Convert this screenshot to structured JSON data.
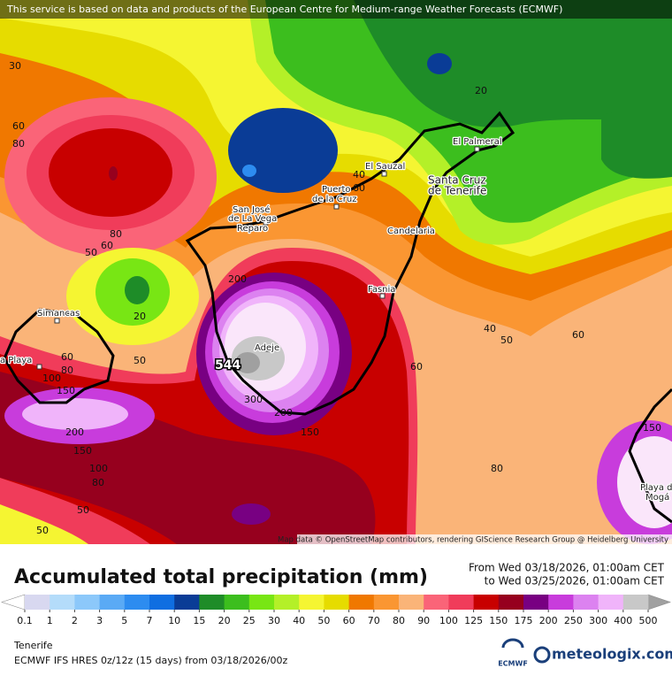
{
  "header": {
    "notice": "This service is based on data and products of the European Centre for Medium-range Weather Forecasts (ECMWF)"
  },
  "map": {
    "places": [
      "El Palmeral",
      "El Sauzal",
      "Santa Cruz",
      "de Tenerife",
      "Puerto",
      "de la Cruz",
      "San José",
      "de La Vega",
      "Reparo",
      "Candelaria",
      "Fasnia",
      "Simancas",
      "Adeje",
      "a Playa",
      "Playa de",
      "Mogá"
    ],
    "contour_labels": [
      30,
      20,
      60,
      80,
      80,
      60,
      50,
      40,
      60,
      200,
      20,
      60,
      80,
      50,
      100,
      150,
      544,
      300,
      200,
      150,
      200,
      150,
      100,
      80,
      50,
      50,
      40,
      50,
      60,
      60,
      80,
      150
    ],
    "attribution": "Map data © OpenStreetMap contributors, rendering GIScience Research Group @ Heidelberg University"
  },
  "footer": {
    "title": "Accumulated total precipitation (mm)",
    "period_from": "From Wed 03/18/2026, 01:00am CET",
    "period_to": "to Wed 03/25/2026, 01:00am CET",
    "region": "Tenerife",
    "model": "ECMWF IFS HRES 0z/12z (15 days) from 03/18/2026/00z",
    "ecmwf_logo": "ECMWF",
    "brand": "meteologix.com"
  },
  "legend": {
    "ticks": [
      0.1,
      1,
      2,
      3,
      5,
      7,
      10,
      15,
      20,
      25,
      30,
      40,
      50,
      60,
      70,
      80,
      90,
      100,
      125,
      150,
      175,
      200,
      250,
      300,
      400,
      500
    ],
    "colors": [
      "#d8d8f0",
      "#b4dcfa",
      "#8cc8fa",
      "#5aaaf5",
      "#2d8cf0",
      "#0f6ee1",
      "#0a3c96",
      "#1e8c28",
      "#3cbe1e",
      "#78e614",
      "#b4f028",
      "#f5f532",
      "#e6dc00",
      "#f07800",
      "#fa9632",
      "#fab478",
      "#fa6478",
      "#f03c5a",
      "#c80000",
      "#96001e",
      "#780082",
      "#c83cdc",
      "#dc82f0",
      "#f0b4fa",
      "#c8c8c8"
    ],
    "under_color": "#ffffff",
    "over_color": "#a0a0a0"
  }
}
